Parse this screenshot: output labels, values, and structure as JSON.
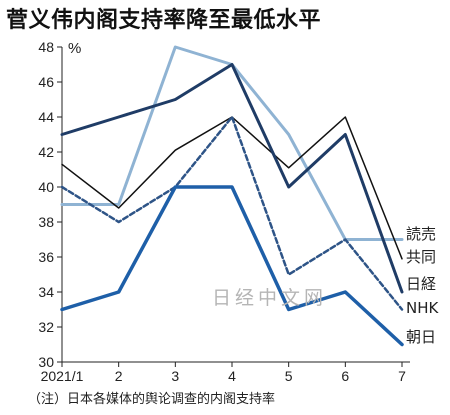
{
  "chart_data": {
    "type": "line",
    "title": "菅义伟内阁支持率降至最低水平",
    "unit_label": "%",
    "note": "（注）日本各媒体的舆论调查的内阁支持率",
    "watermark": "日经中文网",
    "categories": [
      "2021/1",
      "2",
      "3",
      "4",
      "5",
      "6",
      "7"
    ],
    "ylim": [
      30,
      48
    ],
    "yticks": [
      30,
      32,
      34,
      36,
      38,
      40,
      42,
      44,
      46,
      48
    ],
    "grid": false,
    "series": [
      {
        "name": "読売",
        "color": "#8fb3d3",
        "dash": false,
        "width": 3,
        "values": [
          39,
          39,
          48,
          47,
          43,
          37,
          37
        ]
      },
      {
        "name": "共同",
        "color": "#111111",
        "dash": false,
        "width": 1.5,
        "values": [
          41.3,
          38.8,
          42.1,
          44,
          41.1,
          44,
          35.9
        ]
      },
      {
        "name": "日経",
        "color": "#1f3c66",
        "dash": false,
        "width": 3,
        "values": [
          43,
          44,
          45,
          47,
          40,
          43,
          34
        ]
      },
      {
        "name": "NHK",
        "color": "#2e5487",
        "dash": true,
        "width": 2.5,
        "values": [
          40,
          38,
          40,
          44,
          35,
          37,
          33
        ]
      },
      {
        "name": "朝日",
        "color": "#1e5fa8",
        "dash": false,
        "width": 3.5,
        "values": [
          33,
          34,
          40,
          40,
          33,
          34,
          31
        ]
      }
    ]
  }
}
